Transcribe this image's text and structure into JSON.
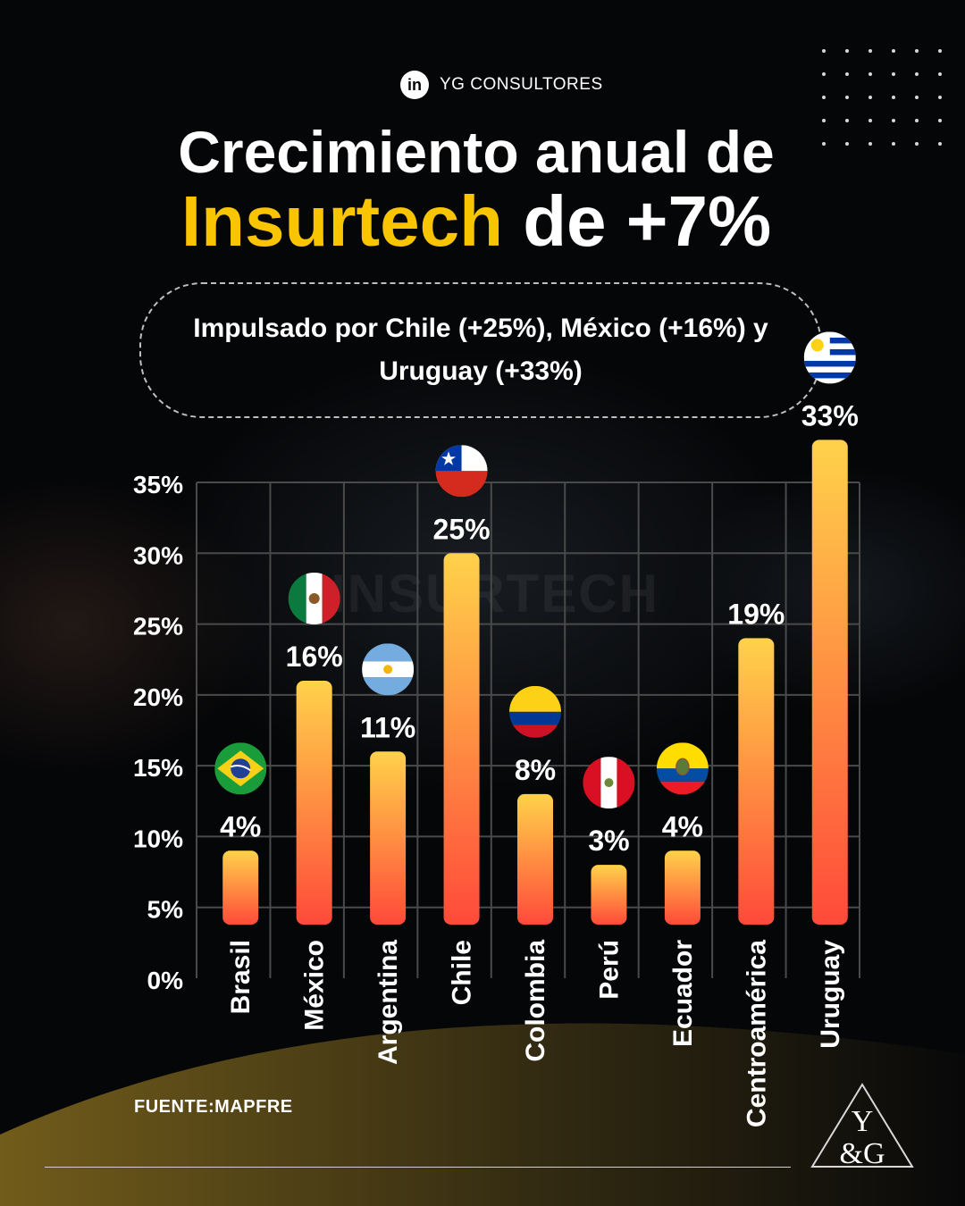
{
  "brand": {
    "icon_label": "in",
    "name": "YG CONSULTORES"
  },
  "title": {
    "line1": "Crecimiento anual de",
    "line2_accent": "Insurtech",
    "line2_rest": "de +7%"
  },
  "subtitle": "Impulsado por Chile (+25%), México (+16%) y Uruguay (+33%)",
  "watermark": "INSURTECH",
  "source": "FUENTE:MAPFRE",
  "logo": {
    "top": "Y",
    "bottom": "&G"
  },
  "colors": {
    "accent": "#f9c400",
    "bar_top": "#ffd24a",
    "bar_bottom": "#ff4a3a",
    "grid": "#4a4a4a",
    "text": "#ffffff"
  },
  "chart_data": {
    "type": "bar",
    "title": "Crecimiento anual de Insurtech de +7%",
    "categories": [
      "Brasil",
      "México",
      "Argentina",
      "Chile",
      "Colombia",
      "Perú",
      "Ecuador",
      "Centroamérica",
      "Uruguay"
    ],
    "values": [
      4,
      16,
      11,
      25,
      8,
      3,
      4,
      19,
      33
    ],
    "data_labels": [
      "4%",
      "16%",
      "11%",
      "25%",
      "8%",
      "3%",
      "4%",
      "19%",
      "33%"
    ],
    "flags": [
      "brazil-flag",
      "mexico-flag",
      "argentina-flag",
      "chile-flag",
      "colombia-flag",
      "peru-flag",
      "ecuador-flag",
      "centroamerica-none",
      "uruguay-flag"
    ],
    "y_ticks": [
      "0%",
      "5%",
      "10%",
      "15%",
      "20%",
      "25%",
      "30%",
      "35%"
    ],
    "ylim": [
      0,
      35
    ],
    "grid": true,
    "legend": "none"
  }
}
